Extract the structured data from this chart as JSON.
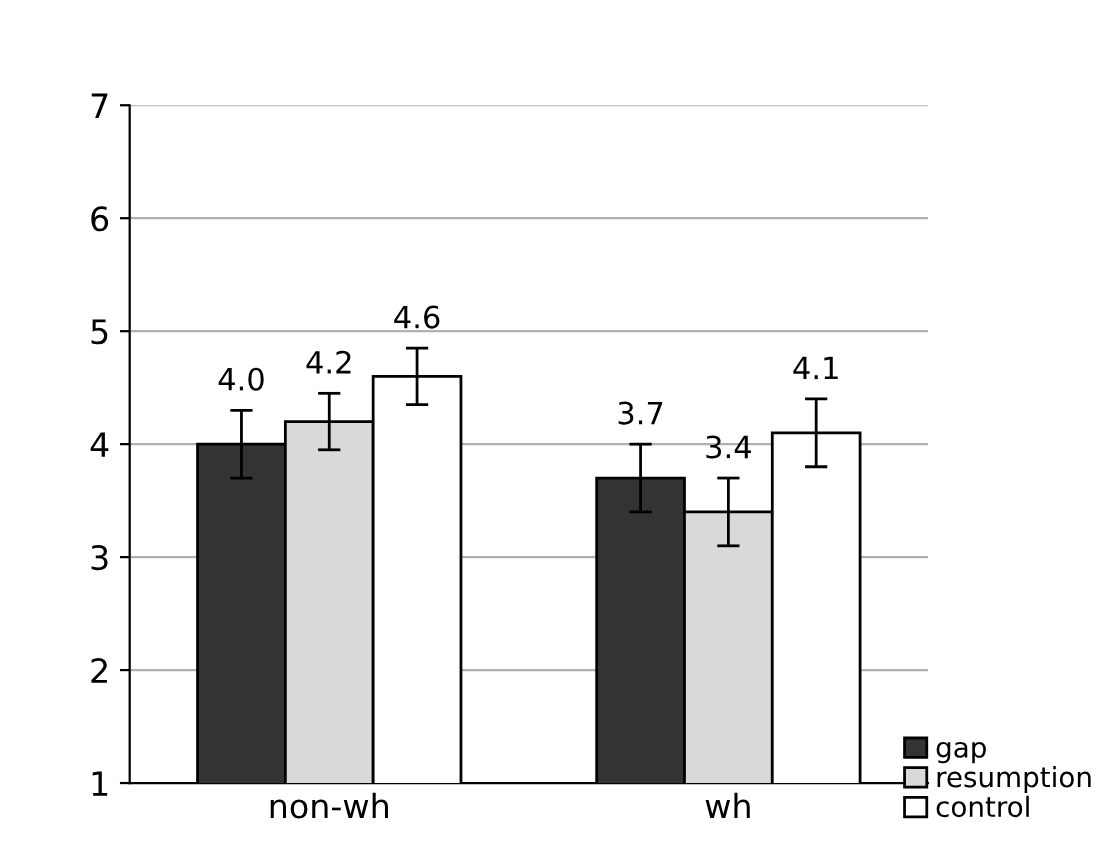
{
  "chart_data": {
    "type": "bar",
    "categories": [
      "non-wh",
      "wh"
    ],
    "series": [
      {
        "name": "gap",
        "color": "#333333",
        "values": [
          4.0,
          3.7
        ],
        "errors": [
          0.3,
          0.3
        ],
        "value_labels": [
          "4.0",
          "3.7"
        ]
      },
      {
        "name": "resumption",
        "color": "#d9d9d9",
        "values": [
          4.2,
          3.4
        ],
        "errors": [
          0.25,
          0.3
        ],
        "value_labels": [
          "4.2",
          "3.4"
        ]
      },
      {
        "name": "control",
        "color": "#ffffff",
        "values": [
          4.6,
          4.1
        ],
        "errors": [
          0.25,
          0.3
        ],
        "value_labels": [
          "4.6",
          "4.1"
        ]
      }
    ],
    "ylim": [
      1,
      7
    ],
    "yticks": [
      1,
      2,
      3,
      4,
      5,
      6,
      7
    ],
    "grid": "y",
    "legend": "bottom right"
  }
}
